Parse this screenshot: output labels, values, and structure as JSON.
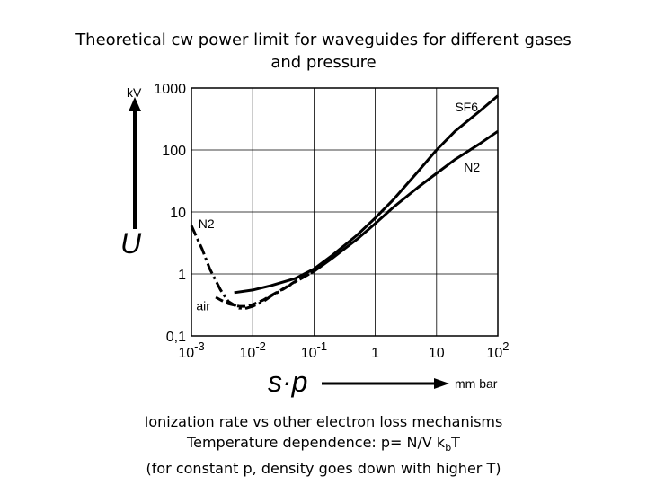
{
  "title_line1": "Theoretical cw power limit for waveguides for different gases",
  "title_line2": "and pressure",
  "caption": {
    "line1": "Ionization rate vs other electron loss mechanisms",
    "line2_prefix": "Temperature dependence: p= N/V k",
    "line2_sub": "b",
    "line2_suffix": "T",
    "line3": "(for constant p, density goes down with higher T)"
  },
  "chart_data": {
    "type": "line",
    "x_scale": "log",
    "y_scale": "log",
    "xlim": [
      0.001,
      100
    ],
    "ylim": [
      0.1,
      1000
    ],
    "grid": true,
    "ylabel": "U",
    "yunit": "kV",
    "xlabel": "s·p",
    "xunit": "mm bar",
    "x_ticks": [
      {
        "base": "10",
        "exp": "-3"
      },
      {
        "base": "10",
        "exp": "-2"
      },
      {
        "base": "10",
        "exp": "-1"
      },
      {
        "base": "1",
        "exp": ""
      },
      {
        "base": "10",
        "exp": ""
      },
      {
        "base": "10",
        "exp": "2"
      }
    ],
    "y_ticks": [
      "0,1",
      "1",
      "10",
      "100",
      "1000"
    ],
    "series": [
      {
        "name": "SF6",
        "style": "solid",
        "x": [
          0.005,
          0.01,
          0.02,
          0.05,
          0.1,
          0.2,
          0.5,
          1,
          2,
          5,
          10,
          20,
          50,
          100
        ],
        "y": [
          0.5,
          0.55,
          0.65,
          0.85,
          1.2,
          2,
          4.2,
          8,
          16,
          45,
          100,
          200,
          420,
          750
        ]
      },
      {
        "name": "N2",
        "style": "solid",
        "x": [
          0.1,
          0.2,
          0.5,
          1,
          2,
          5,
          10,
          20,
          50,
          100
        ],
        "y": [
          1.1,
          1.8,
          3.6,
          6.5,
          12,
          25,
          42,
          70,
          125,
          200
        ]
      },
      {
        "name": "N2",
        "style": "dash-dot",
        "x": [
          0.001,
          0.0015,
          0.002,
          0.003,
          0.004,
          0.006,
          0.008,
          0.01,
          0.015,
          0.02,
          0.03,
          0.05,
          0.1
        ],
        "y": [
          6,
          2.5,
          1.2,
          0.55,
          0.36,
          0.28,
          0.28,
          0.3,
          0.36,
          0.44,
          0.55,
          0.75,
          1.1
        ]
      },
      {
        "name": "air",
        "style": "dash",
        "x": [
          0.0025,
          0.003,
          0.004,
          0.006,
          0.008,
          0.01,
          0.015,
          0.02,
          0.03,
          0.05,
          0.1
        ],
        "y": [
          0.42,
          0.38,
          0.33,
          0.3,
          0.3,
          0.32,
          0.38,
          0.45,
          0.56,
          0.76,
          1.1
        ]
      }
    ]
  }
}
